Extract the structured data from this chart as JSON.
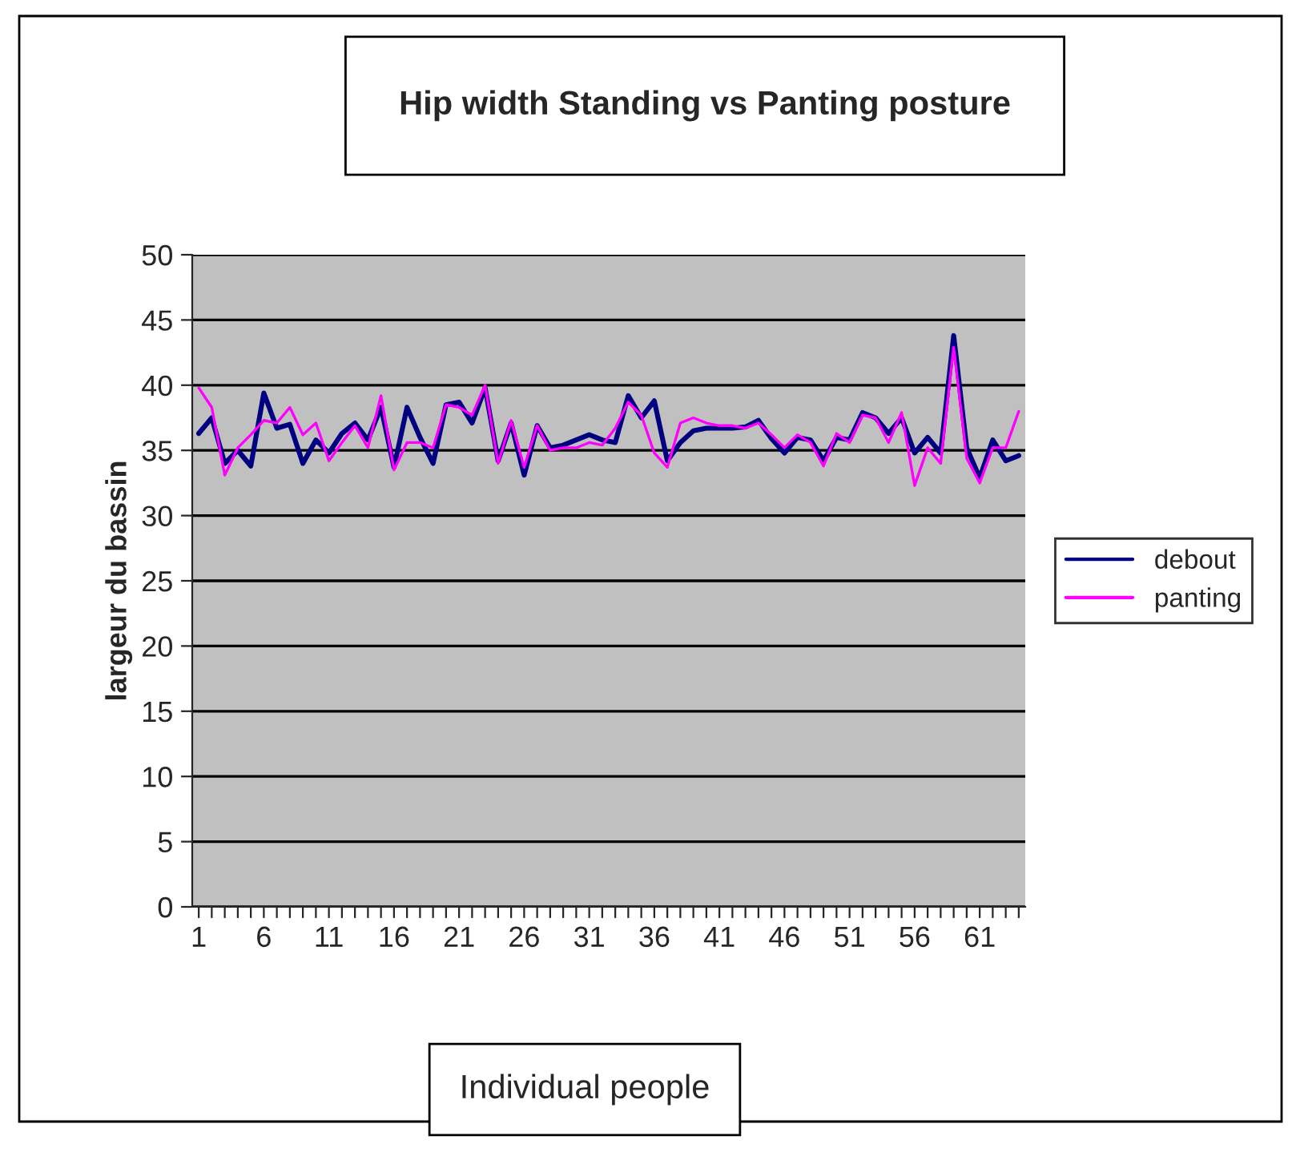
{
  "chart_data": {
    "type": "line",
    "title": "Hip width Standing vs Panting posture",
    "xlabel": "Individual people",
    "ylabel": "largeur du bassin",
    "categories": [
      "1",
      null,
      null,
      null,
      null,
      "6",
      null,
      null,
      null,
      null,
      "11",
      null,
      null,
      null,
      null,
      "16",
      null,
      null,
      null,
      null,
      "21",
      null,
      null,
      null,
      null,
      "26",
      null,
      null,
      null,
      null,
      "31",
      null,
      null,
      null,
      null,
      "36",
      null,
      null,
      null,
      null,
      "41",
      null,
      null,
      null,
      null,
      "46",
      null,
      null,
      null,
      null,
      "51",
      null,
      null,
      null,
      null,
      "56",
      null,
      null,
      null,
      null,
      "61",
      null,
      null,
      null
    ],
    "series": [
      {
        "name": "debout",
        "color": "#000080",
        "values": [
          36.3,
          37.5,
          34,
          35,
          33.8,
          39.4,
          36.7,
          37,
          34,
          35.8,
          34.8,
          36.3,
          37.1,
          35.8,
          38.3,
          33.7,
          38.3,
          36,
          34,
          38.5,
          38.7,
          37.1,
          39.8,
          34.2,
          37.1,
          33.1,
          36.9,
          35.2,
          35.4,
          35.8,
          36.2,
          35.8,
          35.6,
          39.2,
          37.5,
          38.8,
          34.2,
          35.6,
          36.5,
          36.7,
          36.7,
          36.7,
          36.8,
          37.3,
          35.9,
          34.8,
          36,
          35.8,
          34.2,
          36,
          35.8,
          37.9,
          37.5,
          36.3,
          37.5,
          34.8,
          36,
          34.8,
          43.8,
          35.2,
          32.9,
          35.8,
          34.2,
          34.6
        ]
      },
      {
        "name": "panting",
        "color": "#ff00ff",
        "values": [
          39.8,
          38.3,
          33.1,
          35.2,
          36.2,
          37.3,
          37.1,
          38.3,
          36.2,
          37.1,
          34.2,
          35.6,
          36.9,
          35.2,
          39.2,
          33.5,
          35.6,
          35.6,
          35.2,
          38.5,
          38.3,
          37.7,
          40,
          34,
          37.3,
          33.7,
          36.9,
          35,
          35.2,
          35.2,
          35.6,
          35.4,
          36.7,
          38.7,
          37.7,
          34.8,
          33.7,
          37.1,
          37.5,
          37.1,
          36.9,
          36.9,
          36.7,
          37.1,
          36.2,
          35.2,
          36.2,
          35.6,
          33.8,
          36.3,
          35.6,
          37.7,
          37.5,
          35.6,
          37.9,
          32.3,
          35.2,
          34,
          42.9,
          34.4,
          32.5,
          35.2,
          35.2,
          38
        ]
      }
    ],
    "ylim": [
      0,
      50
    ],
    "yticks": [
      0,
      5,
      10,
      15,
      20,
      25,
      30,
      35,
      40,
      45,
      50
    ],
    "grid": "y",
    "legend": "right",
    "marker": "none",
    "line_style": "solid"
  }
}
